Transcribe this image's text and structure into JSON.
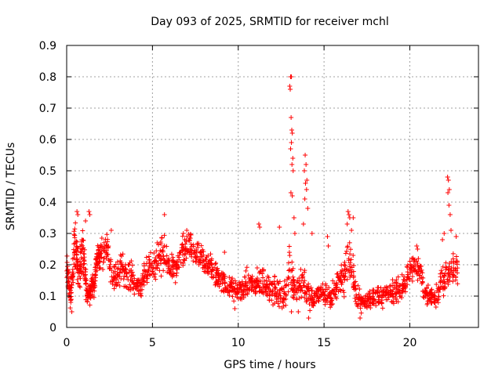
{
  "chart_data": {
    "type": "scatter",
    "title": "Day 093 of 2025, SRMTID for receiver mchl",
    "xlabel": "GPS time / hours",
    "ylabel": "SRMTID / TECUs",
    "xlim": [
      0,
      24
    ],
    "ylim": [
      0,
      0.9
    ],
    "xticks": [
      0,
      5,
      10,
      15,
      20
    ],
    "yticks": [
      0,
      0.1,
      0.2,
      0.3,
      0.4,
      0.5,
      0.6,
      0.7,
      0.8,
      0.9
    ],
    "xtick_labels": [
      "0",
      "5",
      "10",
      "15",
      "20"
    ],
    "ytick_labels": [
      "0",
      "0.1",
      "0.2",
      "0.3",
      "0.4",
      "0.5",
      "0.6",
      "0.7",
      "0.8",
      "0.9"
    ],
    "grid": true,
    "marker": "+",
    "color": "#ff0000",
    "series": [
      {
        "name": "SRMTID",
        "envelope_note": "approximate: dense cloud of points, typical level and spread per hour",
        "x": [
          0,
          0.1,
          0.2,
          0.3,
          0.4,
          0.5,
          0.6,
          0.7,
          0.8,
          0.9,
          1.0,
          1.1,
          1.2,
          1.3,
          1.4,
          1.5,
          1.6,
          1.7,
          1.8,
          1.9,
          2.0,
          2.2,
          2.4,
          2.6,
          2.8,
          3.0,
          3.2,
          3.4,
          3.6,
          3.8,
          4.0,
          4.2,
          4.4,
          4.6,
          4.8,
          5.0,
          5.2,
          5.4,
          5.6,
          5.8,
          6.0,
          6.2,
          6.4,
          6.6,
          6.8,
          7.0,
          7.2,
          7.4,
          7.6,
          7.8,
          8.0,
          8.2,
          8.4,
          8.6,
          8.8,
          9.0,
          9.2,
          9.4,
          9.6,
          9.8,
          10.0,
          10.2,
          10.4,
          10.6,
          10.8,
          11.0,
          11.2,
          11.4,
          11.6,
          11.8,
          12.0,
          12.2,
          12.4,
          12.6,
          12.8,
          13.0,
          13.2,
          13.4,
          13.6,
          13.8,
          14.0,
          14.2,
          14.4,
          14.6,
          14.8,
          15.0,
          15.2,
          15.4,
          15.6,
          15.8,
          16.0,
          16.2,
          16.4,
          16.6,
          16.8,
          17.0,
          17.2,
          17.4,
          17.6,
          17.8,
          18.0,
          18.2,
          18.4,
          18.6,
          18.8,
          19.0,
          19.2,
          19.4,
          19.6,
          19.8,
          20.0,
          20.2,
          20.4,
          20.6,
          20.8,
          21.0,
          21.2,
          21.4,
          21.6,
          21.8,
          22.0,
          22.2,
          22.4,
          22.6,
          22.8
        ],
        "mid": [
          0.18,
          0.15,
          0.1,
          0.12,
          0.22,
          0.28,
          0.22,
          0.18,
          0.2,
          0.25,
          0.22,
          0.15,
          0.1,
          0.11,
          0.12,
          0.15,
          0.12,
          0.18,
          0.24,
          0.22,
          0.23,
          0.25,
          0.26,
          0.18,
          0.15,
          0.17,
          0.19,
          0.18,
          0.17,
          0.16,
          0.14,
          0.13,
          0.14,
          0.17,
          0.19,
          0.2,
          0.21,
          0.22,
          0.23,
          0.21,
          0.2,
          0.19,
          0.18,
          0.21,
          0.24,
          0.26,
          0.25,
          0.24,
          0.23,
          0.22,
          0.21,
          0.2,
          0.19,
          0.18,
          0.16,
          0.15,
          0.14,
          0.13,
          0.12,
          0.12,
          0.12,
          0.12,
          0.13,
          0.14,
          0.14,
          0.13,
          0.14,
          0.15,
          0.14,
          0.13,
          0.12,
          0.11,
          0.1,
          0.1,
          0.12,
          0.2,
          0.15,
          0.12,
          0.14,
          0.16,
          0.11,
          0.09,
          0.09,
          0.1,
          0.11,
          0.11,
          0.1,
          0.09,
          0.12,
          0.14,
          0.16,
          0.17,
          0.22,
          0.2,
          0.12,
          0.09,
          0.08,
          0.08,
          0.09,
          0.1,
          0.1,
          0.1,
          0.1,
          0.1,
          0.11,
          0.11,
          0.12,
          0.12,
          0.13,
          0.15,
          0.17,
          0.19,
          0.2,
          0.19,
          0.12,
          0.1,
          0.1,
          0.1,
          0.11,
          0.14,
          0.15,
          0.17,
          0.2,
          0.2,
          0.18
        ],
        "spread": [
          0.06,
          0.07,
          0.04,
          0.05,
          0.08,
          0.08,
          0.07,
          0.06,
          0.08,
          0.09,
          0.07,
          0.05,
          0.04,
          0.04,
          0.04,
          0.05,
          0.04,
          0.05,
          0.05,
          0.05,
          0.05,
          0.05,
          0.05,
          0.05,
          0.05,
          0.06,
          0.06,
          0.05,
          0.05,
          0.05,
          0.04,
          0.04,
          0.04,
          0.05,
          0.05,
          0.05,
          0.06,
          0.06,
          0.07,
          0.06,
          0.05,
          0.05,
          0.05,
          0.05,
          0.06,
          0.05,
          0.05,
          0.05,
          0.05,
          0.05,
          0.05,
          0.05,
          0.05,
          0.05,
          0.05,
          0.04,
          0.04,
          0.04,
          0.04,
          0.04,
          0.04,
          0.04,
          0.05,
          0.05,
          0.05,
          0.05,
          0.05,
          0.06,
          0.05,
          0.05,
          0.05,
          0.05,
          0.05,
          0.05,
          0.06,
          0.09,
          0.07,
          0.06,
          0.07,
          0.08,
          0.05,
          0.04,
          0.04,
          0.04,
          0.04,
          0.04,
          0.04,
          0.04,
          0.05,
          0.06,
          0.07,
          0.07,
          0.09,
          0.08,
          0.05,
          0.04,
          0.03,
          0.03,
          0.04,
          0.04,
          0.04,
          0.04,
          0.04,
          0.04,
          0.04,
          0.04,
          0.04,
          0.04,
          0.04,
          0.04,
          0.05,
          0.05,
          0.05,
          0.05,
          0.04,
          0.04,
          0.03,
          0.03,
          0.04,
          0.05,
          0.05,
          0.06,
          0.06,
          0.06,
          0.06
        ]
      }
    ],
    "spikes": [
      {
        "x": 13.05,
        "y": 0.8
      },
      {
        "x": 13.1,
        "y": 0.8
      },
      {
        "x": 13.0,
        "y": 0.77
      },
      {
        "x": 13.03,
        "y": 0.76
      },
      {
        "x": 13.08,
        "y": 0.67
      },
      {
        "x": 13.12,
        "y": 0.63
      },
      {
        "x": 13.15,
        "y": 0.62
      },
      {
        "x": 13.1,
        "y": 0.59
      },
      {
        "x": 13.05,
        "y": 0.57
      },
      {
        "x": 13.18,
        "y": 0.54
      },
      {
        "x": 13.13,
        "y": 0.52
      },
      {
        "x": 13.2,
        "y": 0.5
      },
      {
        "x": 13.07,
        "y": 0.43
      },
      {
        "x": 13.15,
        "y": 0.42
      },
      {
        "x": 13.25,
        "y": 0.35
      },
      {
        "x": 13.9,
        "y": 0.55
      },
      {
        "x": 13.95,
        "y": 0.52
      },
      {
        "x": 13.85,
        "y": 0.5
      },
      {
        "x": 14.0,
        "y": 0.47
      },
      {
        "x": 13.92,
        "y": 0.46
      },
      {
        "x": 13.98,
        "y": 0.44
      },
      {
        "x": 13.88,
        "y": 0.41
      },
      {
        "x": 14.05,
        "y": 0.38
      },
      {
        "x": 13.8,
        "y": 0.33
      },
      {
        "x": 13.3,
        "y": 0.3
      },
      {
        "x": 12.4,
        "y": 0.32
      },
      {
        "x": 11.2,
        "y": 0.33
      },
      {
        "x": 11.25,
        "y": 0.32
      },
      {
        "x": 16.4,
        "y": 0.37
      },
      {
        "x": 16.45,
        "y": 0.36
      },
      {
        "x": 16.5,
        "y": 0.35
      },
      {
        "x": 16.7,
        "y": 0.35
      },
      {
        "x": 16.35,
        "y": 0.33
      },
      {
        "x": 16.6,
        "y": 0.31
      },
      {
        "x": 5.7,
        "y": 0.36
      },
      {
        "x": 0.6,
        "y": 0.37
      },
      {
        "x": 0.65,
        "y": 0.36
      },
      {
        "x": 1.3,
        "y": 0.37
      },
      {
        "x": 1.35,
        "y": 0.36
      },
      {
        "x": 1.1,
        "y": 0.34
      },
      {
        "x": 22.2,
        "y": 0.48
      },
      {
        "x": 22.25,
        "y": 0.47
      },
      {
        "x": 22.3,
        "y": 0.44
      },
      {
        "x": 22.22,
        "y": 0.43
      },
      {
        "x": 22.28,
        "y": 0.39
      },
      {
        "x": 22.35,
        "y": 0.36
      },
      {
        "x": 22.4,
        "y": 0.31
      },
      {
        "x": 22.7,
        "y": 0.29
      },
      {
        "x": 22.0,
        "y": 0.3
      },
      {
        "x": 21.9,
        "y": 0.28
      },
      {
        "x": 15.2,
        "y": 0.29
      },
      {
        "x": 15.25,
        "y": 0.26
      },
      {
        "x": 14.3,
        "y": 0.3
      },
      {
        "x": 20.4,
        "y": 0.26
      },
      {
        "x": 20.45,
        "y": 0.25
      },
      {
        "x": 9.2,
        "y": 0.24
      },
      {
        "x": 7.0,
        "y": 0.31
      },
      {
        "x": 6.8,
        "y": 0.3
      },
      {
        "x": 2.6,
        "y": 0.31
      },
      {
        "x": 13.1,
        "y": 0.05
      },
      {
        "x": 13.5,
        "y": 0.05
      },
      {
        "x": 14.1,
        "y": 0.03
      },
      {
        "x": 17.1,
        "y": 0.03
      },
      {
        "x": 0.3,
        "y": 0.05
      },
      {
        "x": 9.8,
        "y": 0.06
      }
    ]
  }
}
